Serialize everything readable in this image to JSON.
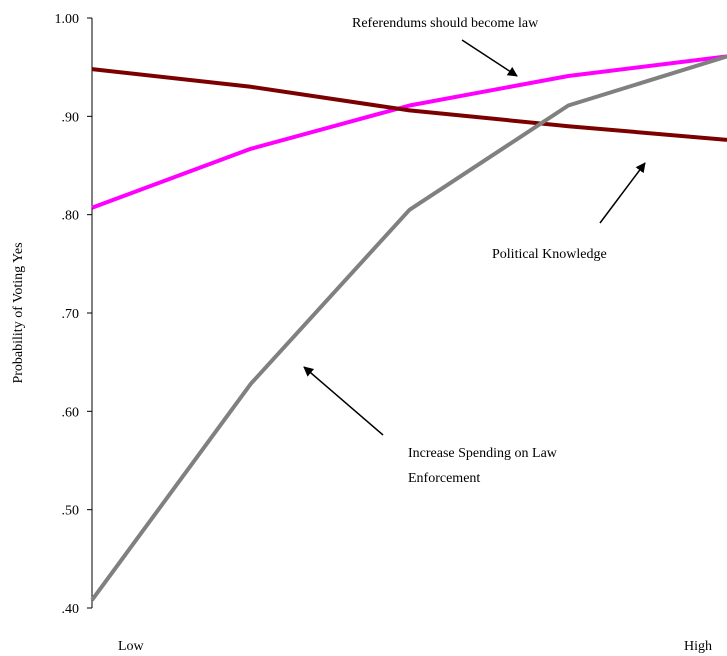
{
  "chart_data": {
    "type": "line",
    "title": "",
    "xlabel": "",
    "ylabel": "Probability of Voting Yes",
    "x_categories": [
      "Low",
      "",
      "",
      "",
      "High"
    ],
    "x_tick_labels": {
      "low": "Low",
      "high": "High"
    },
    "ylim": [
      0.4,
      1.0
    ],
    "y_ticks": [
      {
        "value": 1.0,
        "label": "1.00"
      },
      {
        "value": 0.9,
        "label": ".90"
      },
      {
        "value": 0.8,
        "label": ".80"
      },
      {
        "value": 0.7,
        "label": ".70"
      },
      {
        "value": 0.6,
        "label": ".60"
      },
      {
        "value": 0.5,
        "label": ".50"
      },
      {
        "value": 0.4,
        "label": ".40"
      }
    ],
    "grid": false,
    "series": [
      {
        "name": "Referendums should become law",
        "color": "#ff00ff",
        "values": [
          0.807,
          0.867,
          0.911,
          0.941,
          0.961
        ]
      },
      {
        "name": "Political Knowledge",
        "color": "#7b0000",
        "values": [
          0.948,
          0.93,
          0.906,
          0.89,
          0.876
        ]
      },
      {
        "name": "Increase Spending on Law Enforcement",
        "color": "#808080",
        "values": [
          0.408,
          0.628,
          0.805,
          0.911,
          0.961
        ]
      }
    ],
    "annotations": [
      {
        "lines": [
          "Referendums should become law"
        ],
        "series_index": 0
      },
      {
        "lines": [
          "Political Knowledge"
        ],
        "series_index": 1
      },
      {
        "lines": [
          "Increase Spending on Law",
          "Enforcement"
        ],
        "series_index": 2
      }
    ]
  }
}
